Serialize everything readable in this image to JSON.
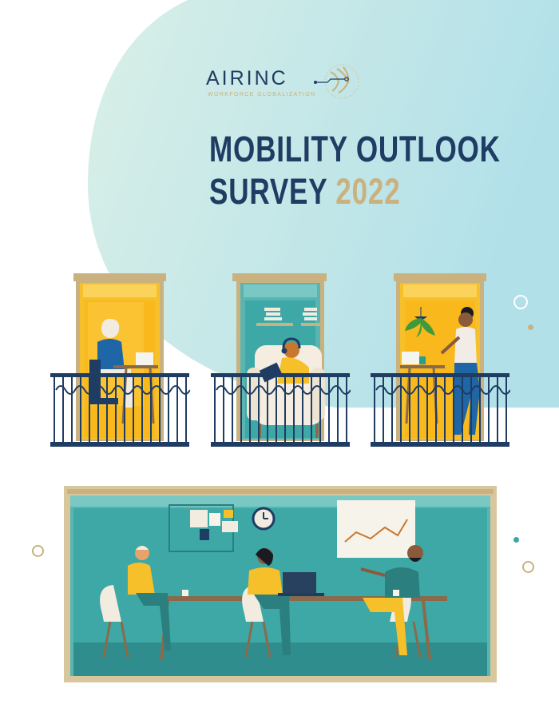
{
  "logo": {
    "wordmark": "AIRINC",
    "tagline": "WORKFORCE GLOBALIZATION"
  },
  "title": {
    "line1": "MOBILITY OUTLOOK",
    "line2_word": "SURVEY",
    "year": "2022"
  },
  "colors": {
    "navy": "#1f3c63",
    "gold": "#c9b27f",
    "teal": "#3aa5a8",
    "yellow": "#f6c02a",
    "blob": "#b6e0e6"
  },
  "illustrations": [
    "window-woman-laptop",
    "window-man-headphones-armchair",
    "window-woman-standing-plant",
    "office-meeting-table"
  ]
}
